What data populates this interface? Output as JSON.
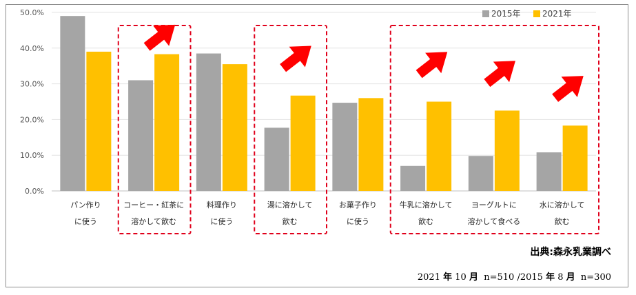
{
  "chart_data": {
    "type": "bar",
    "categories": [
      [
        "パン作り",
        "に使う"
      ],
      [
        "コーヒー・紅茶に",
        "溶かして飲む"
      ],
      [
        "料理作り",
        "に使う"
      ],
      [
        "湯に溶かして",
        "飲む"
      ],
      [
        "お菓子作り",
        "に使う"
      ],
      [
        "牛乳に溶かして",
        "飲む"
      ],
      [
        "ヨーグルトに",
        "溶かして食べる"
      ],
      [
        "水に溶かして",
        "飲む"
      ]
    ],
    "series": [
      {
        "name": "2015年",
        "color": "#a5a5a5",
        "values": [
          49.0,
          31.0,
          38.5,
          17.7,
          24.7,
          7.0,
          9.8,
          10.8
        ]
      },
      {
        "name": "2021年",
        "color": "#ffc000",
        "values": [
          39.0,
          38.3,
          35.5,
          26.7,
          26.0,
          25.0,
          22.5,
          18.3
        ]
      }
    ],
    "y_ticks": [
      "0.0%",
      "10.0%",
      "20.0%",
      "30.0%",
      "40.0%",
      "50.0%"
    ],
    "ylim": [
      0,
      50
    ],
    "legend_position": "top-right",
    "highlighted_categories": [
      [
        1
      ],
      [
        3
      ],
      [
        5,
        6,
        7
      ]
    ],
    "arrow_color": "#ff0000",
    "highlight_color": "#e0001b"
  },
  "source": "出典:森永乳業調べ",
  "footnote": {
    "y2021": "2021",
    "nen1": "年",
    "m2021": "10",
    "getsu1": "月",
    "n2021": "n=510 /2015",
    "nen2": "年",
    "m2015": "8",
    "getsu2": "月",
    "n2015": "n=300"
  }
}
